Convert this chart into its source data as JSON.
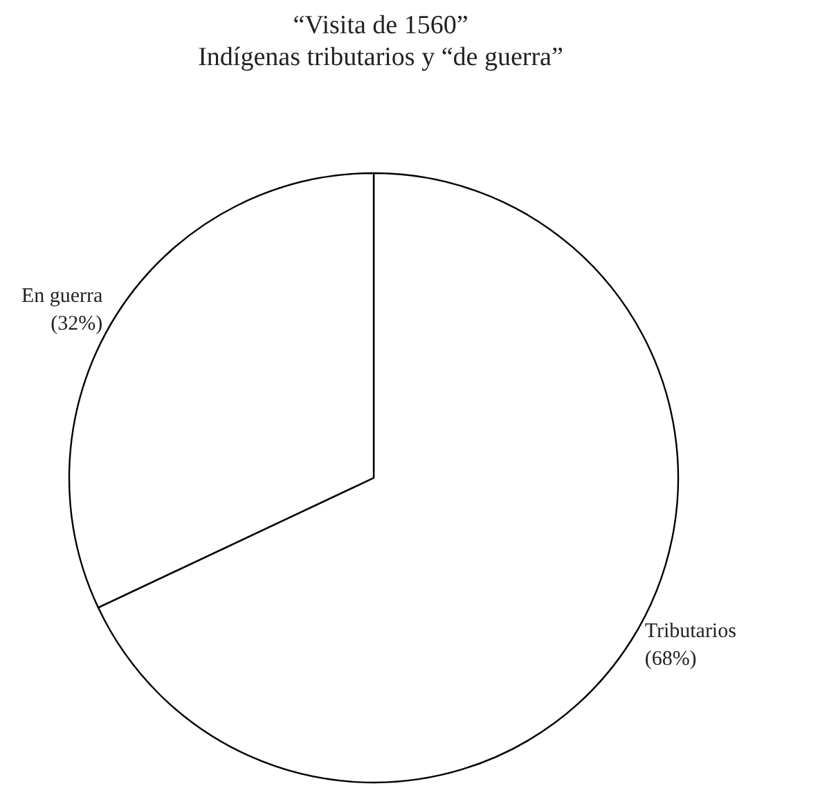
{
  "chart_data": {
    "type": "pie",
    "title": "“Visita de 1560”",
    "subtitle": "Indígenas tributarios y “de guerra”",
    "categories": [
      "Tributarios",
      "En guerra"
    ],
    "values": [
      68,
      32
    ],
    "colors": [
      "#ffffff",
      "#ffffff"
    ],
    "value_labels": [
      "(68%)",
      "(32%)"
    ]
  }
}
